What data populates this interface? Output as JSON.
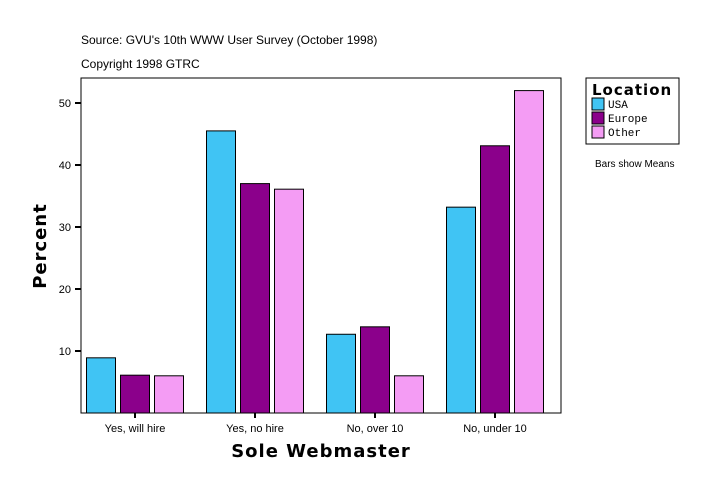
{
  "header": {
    "source": "Source: GVU's 10th WWW User Survey (October 1998)",
    "copyright": "Copyright 1998 GTRC"
  },
  "note": "Bars show Means",
  "chart_data": {
    "type": "bar",
    "title": "",
    "xlabel": "Sole Webmaster",
    "ylabel": "Percent",
    "ylim": [
      0,
      54
    ],
    "yticks": [
      10,
      20,
      30,
      40,
      50
    ],
    "categories": [
      "Yes, will hire",
      "Yes, no hire",
      "No, over 10",
      "No, under 10"
    ],
    "legend_title": "Location",
    "legend_position": "right",
    "series": [
      {
        "name": "USA",
        "color": "#40c4f4",
        "values": [
          8.9,
          45.5,
          12.7,
          33.2
        ]
      },
      {
        "name": "Europe",
        "color": "#8b008b",
        "values": [
          6.1,
          37.0,
          13.9,
          43.1
        ]
      },
      {
        "name": "Other",
        "color": "#f49cf4",
        "values": [
          6.0,
          36.1,
          6.0,
          52.0
        ]
      }
    ]
  }
}
